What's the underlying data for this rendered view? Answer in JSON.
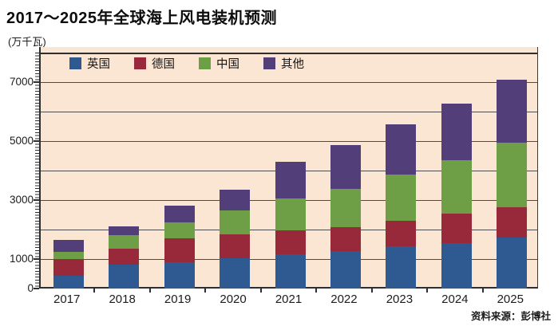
{
  "header": {
    "title": "2017～2025年全球海上风电装机预测",
    "unit": "(万千瓦)"
  },
  "source": "资料来源：彭博社",
  "colors": {
    "plot_background": "#fbe5d3",
    "gridline": "#4c4c4c",
    "axis": "#2e2e2e",
    "uk_blue": "#2e5a91",
    "germany_red": "#97293a",
    "china_green": "#6e9e46",
    "other_purple": "#523f7a"
  },
  "chart_data": {
    "type": "bar",
    "stacked": true,
    "title": "2017～2025年全球海上风电装机预测",
    "ylabel": "(万千瓦)",
    "categories": [
      "2017",
      "2018",
      "2019",
      "2020",
      "2021",
      "2022",
      "2023",
      "2024",
      "2025"
    ],
    "series": [
      {
        "name": "英国",
        "color": "#2e5a91",
        "values": [
          420,
          800,
          890,
          1020,
          1170,
          1280,
          1430,
          1550,
          1740
        ]
      },
      {
        "name": "德国",
        "color": "#97293a",
        "values": [
          580,
          550,
          800,
          820,
          790,
          800,
          860,
          980,
          1030
        ]
      },
      {
        "name": "中国",
        "color": "#6e9e46",
        "values": [
          250,
          450,
          560,
          810,
          1090,
          1300,
          1570,
          1810,
          2180
        ]
      },
      {
        "name": "其他",
        "color": "#523f7a",
        "values": [
          400,
          300,
          570,
          710,
          1250,
          1480,
          1710,
          1940,
          2140
        ]
      }
    ],
    "totals": [
      1650,
      2100,
      2820,
      3360,
      4300,
      4860,
      5570,
      6280,
      7090
    ],
    "ylim": [
      0,
      8000
    ],
    "gridline_step": 1000,
    "ytick_labels": [
      "0",
      "1000",
      "3000",
      "5000",
      "7000"
    ],
    "ytick_values": [
      0,
      1000,
      3000,
      5000,
      7000
    ],
    "grid": true,
    "legend_position": "top-left-inside"
  }
}
